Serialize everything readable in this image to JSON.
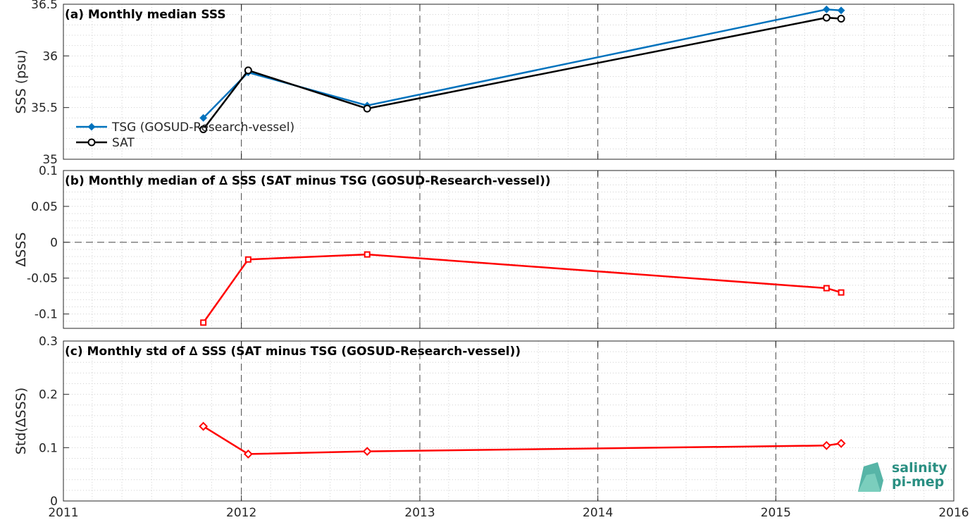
{
  "chart_data": [
    {
      "type": "line",
      "title": "(a) Monthly median SSS",
      "ylabel": "SSS (psu)",
      "xlim": [
        "2011-01-01",
        "2016-01-01"
      ],
      "ylim": [
        35,
        36.5
      ],
      "yticks": [
        "35",
        "35.5",
        "36",
        "36.5"
      ],
      "xticks": [],
      "grid": true,
      "legend": "left",
      "series": [
        {
          "name": "TSG (GOSUD-Research-vessel)",
          "color": "#0072bd",
          "marker": "diamond",
          "x": [
            "2011-10-15",
            "2012-01-15",
            "2012-09-15",
            "2015-04-15",
            "2015-05-15"
          ],
          "y": [
            35.4,
            35.84,
            35.52,
            36.45,
            36.44
          ]
        },
        {
          "name": "SAT",
          "color": "#000000",
          "marker": "circle",
          "x": [
            "2011-10-15",
            "2012-01-15",
            "2012-09-15",
            "2015-04-15",
            "2015-05-15"
          ],
          "y": [
            35.29,
            35.86,
            35.49,
            36.37,
            36.36
          ]
        }
      ]
    },
    {
      "type": "line",
      "title": "(b) Monthly median of ∆ SSS (SAT minus TSG (GOSUD-Research-vessel))",
      "ylabel": "∆SSS",
      "xlim": [
        "2011-01-01",
        "2016-01-01"
      ],
      "ylim": [
        -0.12,
        0.1
      ],
      "yticks": [
        "-0.1",
        "-0.05",
        "0",
        "0.05",
        "0.1"
      ],
      "xticks": [],
      "grid": true,
      "zero_line": true,
      "series": [
        {
          "color": "#ff0000",
          "marker": "square",
          "x": [
            "2011-10-15",
            "2012-01-15",
            "2012-09-15",
            "2015-04-15",
            "2015-05-15"
          ],
          "y": [
            -0.112,
            -0.024,
            -0.017,
            -0.064,
            -0.07
          ]
        }
      ]
    },
    {
      "type": "line",
      "title": "(c) Monthly std of ∆ SSS (SAT minus TSG (GOSUD-Research-vessel))",
      "ylabel": "Std(∆SSS)",
      "xlim": [
        "2011-01-01",
        "2016-01-01"
      ],
      "ylim": [
        0,
        0.3
      ],
      "yticks": [
        "0",
        "0.1",
        "0.2",
        "0.3"
      ],
      "xticks": [
        "2011",
        "2012",
        "2013",
        "2014",
        "2015",
        "2016"
      ],
      "grid": true,
      "series": [
        {
          "color": "#ff0000",
          "marker": "diamond",
          "x": [
            "2011-10-15",
            "2012-01-15",
            "2012-09-15",
            "2015-04-15",
            "2015-05-15"
          ],
          "y": [
            0.14,
            0.088,
            0.093,
            0.104,
            0.108
          ]
        }
      ]
    }
  ],
  "logo": {
    "line1": "salinity",
    "line2": "pi-mep",
    "color": "#2a8f82"
  }
}
